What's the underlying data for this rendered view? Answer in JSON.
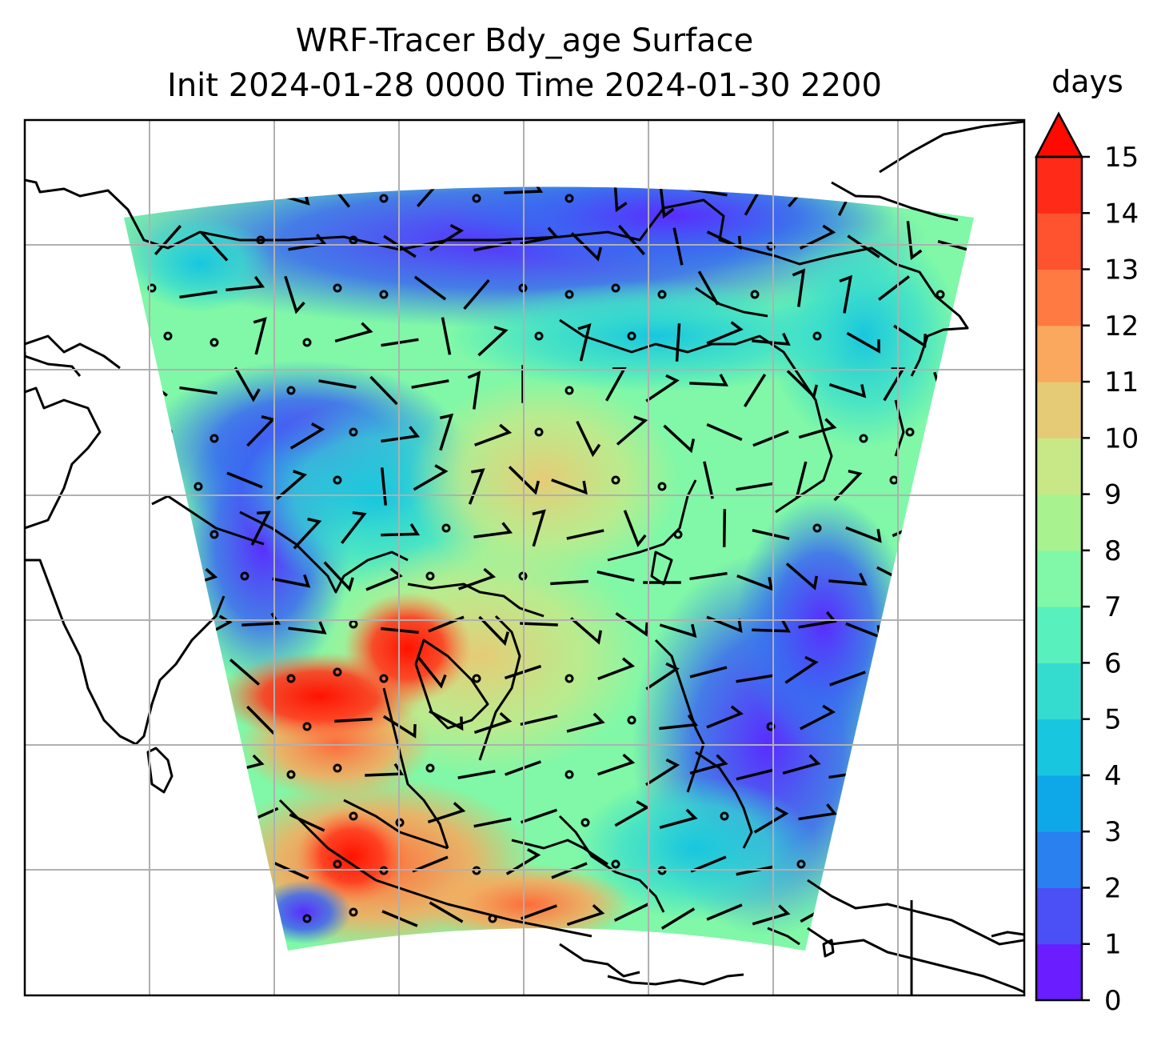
{
  "title": {
    "line1": "WRF-Tracer Bdy_age Surface",
    "line2": "Init 2024-01-28 0000 Time 2024-01-30 2200"
  },
  "colorbar": {
    "units_label": "days",
    "ticks": [
      "0",
      "1",
      "2",
      "3",
      "4",
      "5",
      "6",
      "7",
      "8",
      "9",
      "10",
      "11",
      "12",
      "13",
      "14",
      "15"
    ],
    "extend": "max",
    "colors": [
      "#6a1dff",
      "#4a50f5",
      "#2a80ee",
      "#0ea8e8",
      "#18c6df",
      "#34dcd0",
      "#58f0bd",
      "#80f8a7",
      "#a8f290",
      "#c8e888",
      "#e6cb76",
      "#f9a85d",
      "#ff7a42",
      "#ff522e",
      "#ff2a18",
      "#ff0a00"
    ]
  },
  "map": {
    "gridlines": true,
    "field": "Bdy_age",
    "level": "Surface",
    "wind_barbs": true
  }
}
